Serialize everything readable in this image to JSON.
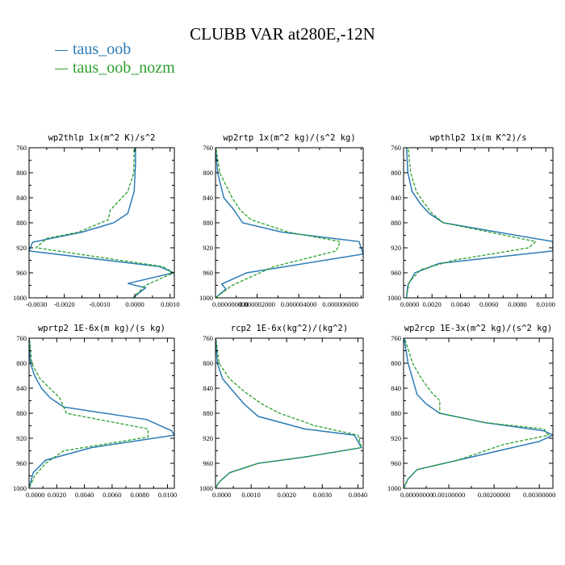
{
  "title": "CLUBB VAR at280E,-12N",
  "legend": [
    {
      "name": "taus_oob",
      "color": "#2c7bb6"
    },
    {
      "name": "taus_oob_nozm",
      "color": "#2ca02c"
    }
  ],
  "chart_data": [
    {
      "type": "line",
      "title": "wp2thlp  1x(m^2 K)/s^2",
      "xlim": [
        -0.003,
        0.00112
      ],
      "ylim": [
        760,
        1000
      ],
      "xticks": [
        -0.003,
        -0.002,
        -0.001,
        0.0,
        0.001
      ],
      "xtick_labels": [
        "-0.0030",
        "-0.0020",
        "-0.0010",
        "0.0000",
        "0.0010"
      ],
      "yticks": [
        760,
        800,
        840,
        880,
        920,
        960,
        1000
      ],
      "series": [
        {
          "name": "taus_oob",
          "color": "#2c7bb6",
          "x": [
            2e-05,
            2e-05,
            -2e-05,
            -0.0002,
            -0.0006,
            -0.0015,
            -0.0029,
            -0.003,
            0.0007,
            0.0011,
            -0.0002,
            0.0003,
            -5e-05
          ],
          "y": [
            755,
            785,
            830,
            865,
            880,
            895,
            911,
            925,
            950,
            960,
            977,
            984,
            1000
          ]
        },
        {
          "name": "taus_oob_nozm",
          "color": "#2ca02c",
          "x": [
            -2e-05,
            -3e-05,
            -0.0002,
            -0.0007,
            -0.00075,
            -0.0016,
            -0.0025,
            -0.0028,
            0.0008,
            0.0011,
            0.0003,
            -5e-05
          ],
          "y": [
            755,
            800,
            830,
            860,
            875,
            895,
            905,
            920,
            950,
            960,
            980,
            1000
          ]
        }
      ]
    },
    {
      "type": "line",
      "title": "wp2rtp  1x(m^2 kg)/(s^2 kg)",
      "xlim": [
        0.0,
        7.1e-06
      ],
      "ylim": [
        760,
        1000
      ],
      "xticks": [
        0.0,
        2e-06,
        4e-06,
        6e-06
      ],
      "xtick_labels": [
        "0.000000000",
        "0.000002000",
        "0.000004000",
        "0.000006000"
      ],
      "yticks": [
        760,
        800,
        840,
        880,
        920,
        960,
        1000
      ],
      "series": [
        {
          "name": "taus_oob",
          "color": "#2c7bb6",
          "x": [
            0.0,
            1e-07,
            4e-07,
            9e-07,
            1.3e-06,
            3.2e-06,
            6.9e-06,
            7.1e-06,
            1.5e-06,
            3e-07,
            5e-07,
            0.0
          ],
          "y": [
            755,
            800,
            840,
            860,
            880,
            895,
            910,
            930,
            960,
            978,
            986,
            1000
          ]
        },
        {
          "name": "taus_oob_nozm",
          "color": "#2ca02c",
          "x": [
            0.0,
            2e-07,
            8e-07,
            1.2e-06,
            1.7e-06,
            3.5e-06,
            6e-06,
            5.8e-06,
            2.8e-06,
            8e-07,
            0.0
          ],
          "y": [
            755,
            800,
            840,
            860,
            875,
            895,
            910,
            925,
            950,
            980,
            1000
          ]
        }
      ]
    },
    {
      "type": "line",
      "title": "wpthlp2  1x(m K^2)/s",
      "xlim": [
        0.0,
        0.0105
      ],
      "ylim": [
        760,
        1000
      ],
      "xticks": [
        0.0,
        0.002,
        0.004,
        0.006,
        0.008,
        0.01
      ],
      "xtick_labels": [
        "0.0000",
        "0.0020",
        "0.0040",
        "0.0060",
        "0.0080",
        "0.0100"
      ],
      "yticks": [
        760,
        800,
        840,
        880,
        920,
        960,
        1000
      ],
      "series": [
        {
          "name": "taus_oob",
          "color": "#2c7bb6",
          "x": [
            0.0002,
            0.0003,
            0.0006,
            0.0012,
            0.0018,
            0.0028,
            0.0105,
            0.0105,
            0.0025,
            0.0008,
            0.0003,
            0.0002
          ],
          "y": [
            755,
            800,
            830,
            850,
            865,
            880,
            910,
            925,
            945,
            960,
            980,
            1000
          ]
        },
        {
          "name": "taus_oob_nozm",
          "color": "#2ca02c",
          "x": [
            0.0003,
            0.0005,
            0.0009,
            0.0015,
            0.002,
            0.0028,
            0.0093,
            0.0088,
            0.0035,
            0.0012,
            0.0004,
            0.0002
          ],
          "y": [
            755,
            800,
            830,
            850,
            865,
            880,
            910,
            920,
            940,
            955,
            975,
            1000
          ]
        }
      ]
    },
    {
      "type": "line",
      "title": "wprtp2  1E-6x(m kg)/(s kg)",
      "xlim": [
        0.0,
        0.0105
      ],
      "ylim": [
        760,
        1000
      ],
      "xticks": [
        0.0,
        0.002,
        0.004,
        0.006,
        0.008,
        0.01
      ],
      "xtick_labels": [
        "0.0000",
        "0.0020",
        "0.0040",
        "0.0060",
        "0.0080",
        "0.0100"
      ],
      "yticks": [
        760,
        800,
        840,
        880,
        920,
        960,
        1000
      ],
      "series": [
        {
          "name": "taus_oob",
          "color": "#2c7bb6",
          "x": [
            0.0,
            0.0001,
            0.0004,
            0.0009,
            0.0015,
            0.0025,
            0.0085,
            0.0103,
            0.0105,
            0.0045,
            0.0012,
            0.0003,
            0.0
          ],
          "y": [
            755,
            800,
            820,
            840,
            855,
            870,
            890,
            908,
            915,
            935,
            955,
            975,
            1000
          ]
        },
        {
          "name": "taus_oob_nozm",
          "color": "#2ca02c",
          "x": [
            0.0,
            0.0002,
            0.0008,
            0.0015,
            0.0022,
            0.0027,
            0.0086,
            0.0086,
            0.0025,
            0.0012,
            0.0004,
            0.0
          ],
          "y": [
            755,
            800,
            825,
            840,
            855,
            880,
            905,
            918,
            940,
            960,
            980,
            1000
          ]
        }
      ]
    },
    {
      "type": "line",
      "title": "rcp2  1E-6x(kg^2)/(kg^2)",
      "xlim": [
        0.0,
        0.00415
      ],
      "ylim": [
        760,
        1000
      ],
      "xticks": [
        0.0,
        0.001,
        0.002,
        0.003,
        0.004
      ],
      "xtick_labels": [
        "0.0000",
        "0.0010",
        "0.0020",
        "0.0030",
        "0.0040"
      ],
      "yticks": [
        760,
        800,
        840,
        880,
        920,
        960,
        1000
      ],
      "series": [
        {
          "name": "taus_oob",
          "color": "#2c7bb6",
          "x": [
            0.0,
            5e-05,
            0.0002,
            0.0005,
            0.0008,
            0.0012,
            0.0025,
            0.0039,
            0.0041,
            0.0025,
            0.0012,
            0.0004,
            0.0001,
            0.0
          ],
          "y": [
            755,
            800,
            825,
            845,
            865,
            885,
            905,
            915,
            935,
            950,
            960,
            975,
            990,
            1000
          ]
        },
        {
          "name": "taus_oob_nozm",
          "color": "#2ca02c",
          "x": [
            0.0,
            0.0001,
            0.0004,
            0.0008,
            0.0013,
            0.0018,
            0.0028,
            0.004,
            0.0041,
            0.0025,
            0.0012,
            0.0004,
            0.0001,
            0.0
          ],
          "y": [
            755,
            800,
            825,
            845,
            865,
            880,
            900,
            915,
            935,
            950,
            960,
            975,
            990,
            1000
          ]
        }
      ]
    },
    {
      "type": "line",
      "title": "wp2rcp  1E-3x(m^2 kg)/(s^2 kg)",
      "xlim": [
        0.0,
        0.0033
      ],
      "ylim": [
        760,
        1000
      ],
      "xticks": [
        0.0,
        0.001,
        0.002,
        0.003
      ],
      "xtick_labels": [
        "0.00000000",
        "0.00100000",
        "0.00200000",
        "0.00300000"
      ],
      "yticks": [
        760,
        800,
        840,
        880,
        920,
        960,
        1000
      ],
      "series": [
        {
          "name": "taus_oob",
          "color": "#2c7bb6",
          "x": [
            0.0,
            0.0001,
            0.0002,
            0.0003,
            0.0005,
            0.0008,
            0.0018,
            0.0031,
            0.0033,
            0.003,
            0.0012,
            0.0003,
            0.0001,
            0.0
          ],
          "y": [
            755,
            800,
            825,
            850,
            865,
            880,
            895,
            908,
            915,
            925,
            955,
            970,
            985,
            1000
          ]
        },
        {
          "name": "taus_oob_nozm",
          "color": "#2ca02c",
          "x": [
            0.0,
            0.0002,
            0.0004,
            0.0006,
            0.0008,
            0.0008,
            0.0018,
            0.0031,
            0.0032,
            0.0022,
            0.0012,
            0.0003,
            0.0001,
            0.0
          ],
          "y": [
            755,
            800,
            825,
            845,
            860,
            880,
            895,
            905,
            915,
            930,
            955,
            970,
            985,
            1000
          ]
        }
      ]
    }
  ]
}
